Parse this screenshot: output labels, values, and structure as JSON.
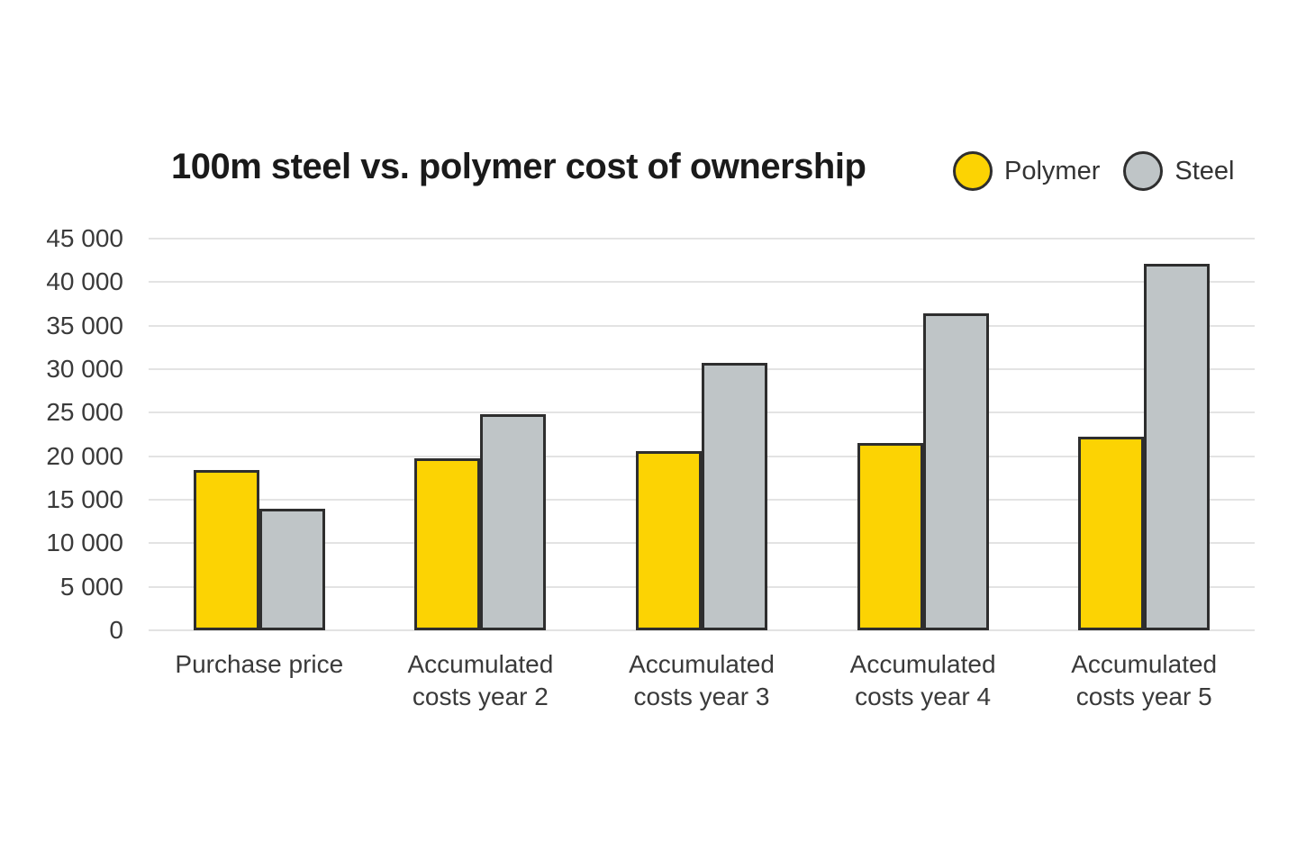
{
  "chart_data": {
    "type": "bar",
    "title": "100m steel vs. polymer cost of ownership",
    "categories": [
      "Purchase price",
      "Accumulated\ncosts year 2",
      "Accumulated\ncosts year 3",
      "Accumulated\ncosts year 4",
      "Accumulated\ncosts year 5"
    ],
    "series": [
      {
        "name": "Polymer",
        "color": "#fcd303",
        "values": [
          18400,
          19800,
          20600,
          21500,
          22200
        ]
      },
      {
        "name": "Steel",
        "color": "#bfc5c7",
        "values": [
          14000,
          24800,
          30700,
          36400,
          42100
        ]
      }
    ],
    "ylim": [
      0,
      45000
    ],
    "yticks": [
      {
        "value": 0,
        "label": "0"
      },
      {
        "value": 5000,
        "label": "5 000"
      },
      {
        "value": 10000,
        "label": "10 000"
      },
      {
        "value": 15000,
        "label": "15 000"
      },
      {
        "value": 20000,
        "label": "20 000"
      },
      {
        "value": 25000,
        "label": "25 000"
      },
      {
        "value": 30000,
        "label": "30 000"
      },
      {
        "value": 35000,
        "label": "35 000"
      },
      {
        "value": 40000,
        "label": "40 000"
      },
      {
        "value": 45000,
        "label": "45 000"
      }
    ],
    "grid": true,
    "legend_position": "top-right",
    "colors": {
      "bar_border": "#2e2e2e",
      "gridline": "#e3e3e3",
      "title_text": "#1a1a1a",
      "axis_text": "#3a3a3a"
    }
  }
}
